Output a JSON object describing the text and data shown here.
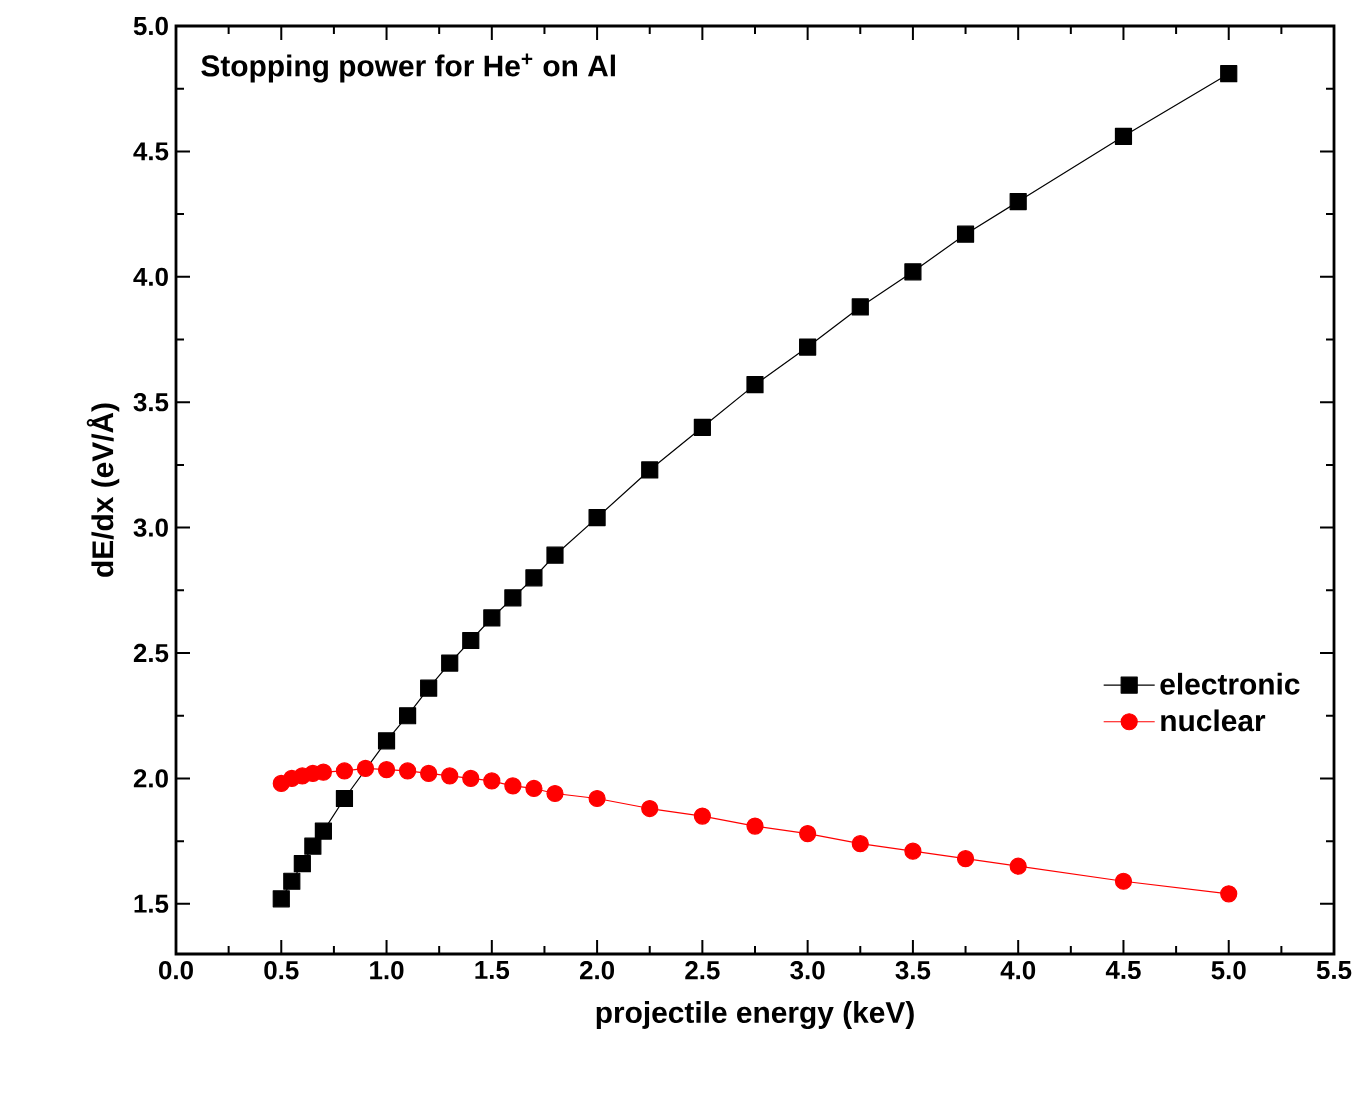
{
  "chart_data": {
    "type": "line",
    "title": "Stopping power for He$^{+}$ on Al",
    "xlabel": "projectile energy (keV)",
    "ylabel": "dE/dx (eV/Å)",
    "xlim": [
      0,
      5.5
    ],
    "ylim": [
      1.3,
      5.0
    ],
    "xticks": [
      {
        "value": 0,
        "label": "0.0"
      },
      {
        "value": 0.5,
        "label": "0.5"
      },
      {
        "value": 1,
        "label": "1.0"
      },
      {
        "value": 1.5,
        "label": "1.5"
      },
      {
        "value": 2,
        "label": "2.0"
      },
      {
        "value": 2.5,
        "label": "2.5"
      },
      {
        "value": 3,
        "label": "3.0"
      },
      {
        "value": 3.5,
        "label": "3.5"
      },
      {
        "value": 4,
        "label": "4.0"
      },
      {
        "value": 4.5,
        "label": "4.5"
      },
      {
        "value": 5,
        "label": "5.0"
      },
      {
        "value": 5.5,
        "label": "5.5"
      }
    ],
    "yticks": [
      {
        "value": 1.5,
        "label": "1.5"
      },
      {
        "value": 2,
        "label": "2.0"
      },
      {
        "value": 2.5,
        "label": "2.5"
      },
      {
        "value": 3,
        "label": "3.0"
      },
      {
        "value": 3.5,
        "label": "3.5"
      },
      {
        "value": 4,
        "label": "4.0"
      },
      {
        "value": 4.5,
        "label": "4.5"
      },
      {
        "value": 5,
        "label": "5.0"
      }
    ],
    "grid": false,
    "legend": "right",
    "line_style": "solid",
    "series": [
      {
        "name": "electronic",
        "color": "#000000",
        "marker": "square",
        "x": [
          0.5,
          0.55,
          0.6,
          0.65,
          0.7,
          0.8,
          1.0,
          1.1,
          1.2,
          1.3,
          1.4,
          1.5,
          1.6,
          1.7,
          1.8,
          2.0,
          2.25,
          2.5,
          2.75,
          3.0,
          3.25,
          3.5,
          3.75,
          4.0,
          4.5,
          5.0
        ],
        "values": [
          1.52,
          1.59,
          1.66,
          1.73,
          1.79,
          1.92,
          2.15,
          2.25,
          2.36,
          2.46,
          2.55,
          2.64,
          2.72,
          2.8,
          2.89,
          3.04,
          3.23,
          3.4,
          3.57,
          3.72,
          3.88,
          4.02,
          4.17,
          4.3,
          4.56,
          4.81
        ]
      },
      {
        "name": "nuclear",
        "color": "#ff0000",
        "marker": "circle",
        "x": [
          0.5,
          0.55,
          0.6,
          0.65,
          0.7,
          0.8,
          0.9,
          1.0,
          1.1,
          1.2,
          1.3,
          1.4,
          1.5,
          1.6,
          1.7,
          1.8,
          2.0,
          2.25,
          2.5,
          2.75,
          3.0,
          3.25,
          3.5,
          3.75,
          4.0,
          4.5,
          5.0
        ],
        "values": [
          1.98,
          2.0,
          2.01,
          2.02,
          2.025,
          2.03,
          2.04,
          2.035,
          2.03,
          2.02,
          2.01,
          2.0,
          1.99,
          1.97,
          1.96,
          1.94,
          1.92,
          1.88,
          1.85,
          1.81,
          1.78,
          1.74,
          1.71,
          1.68,
          1.65,
          1.59,
          1.54
        ]
      }
    ]
  }
}
